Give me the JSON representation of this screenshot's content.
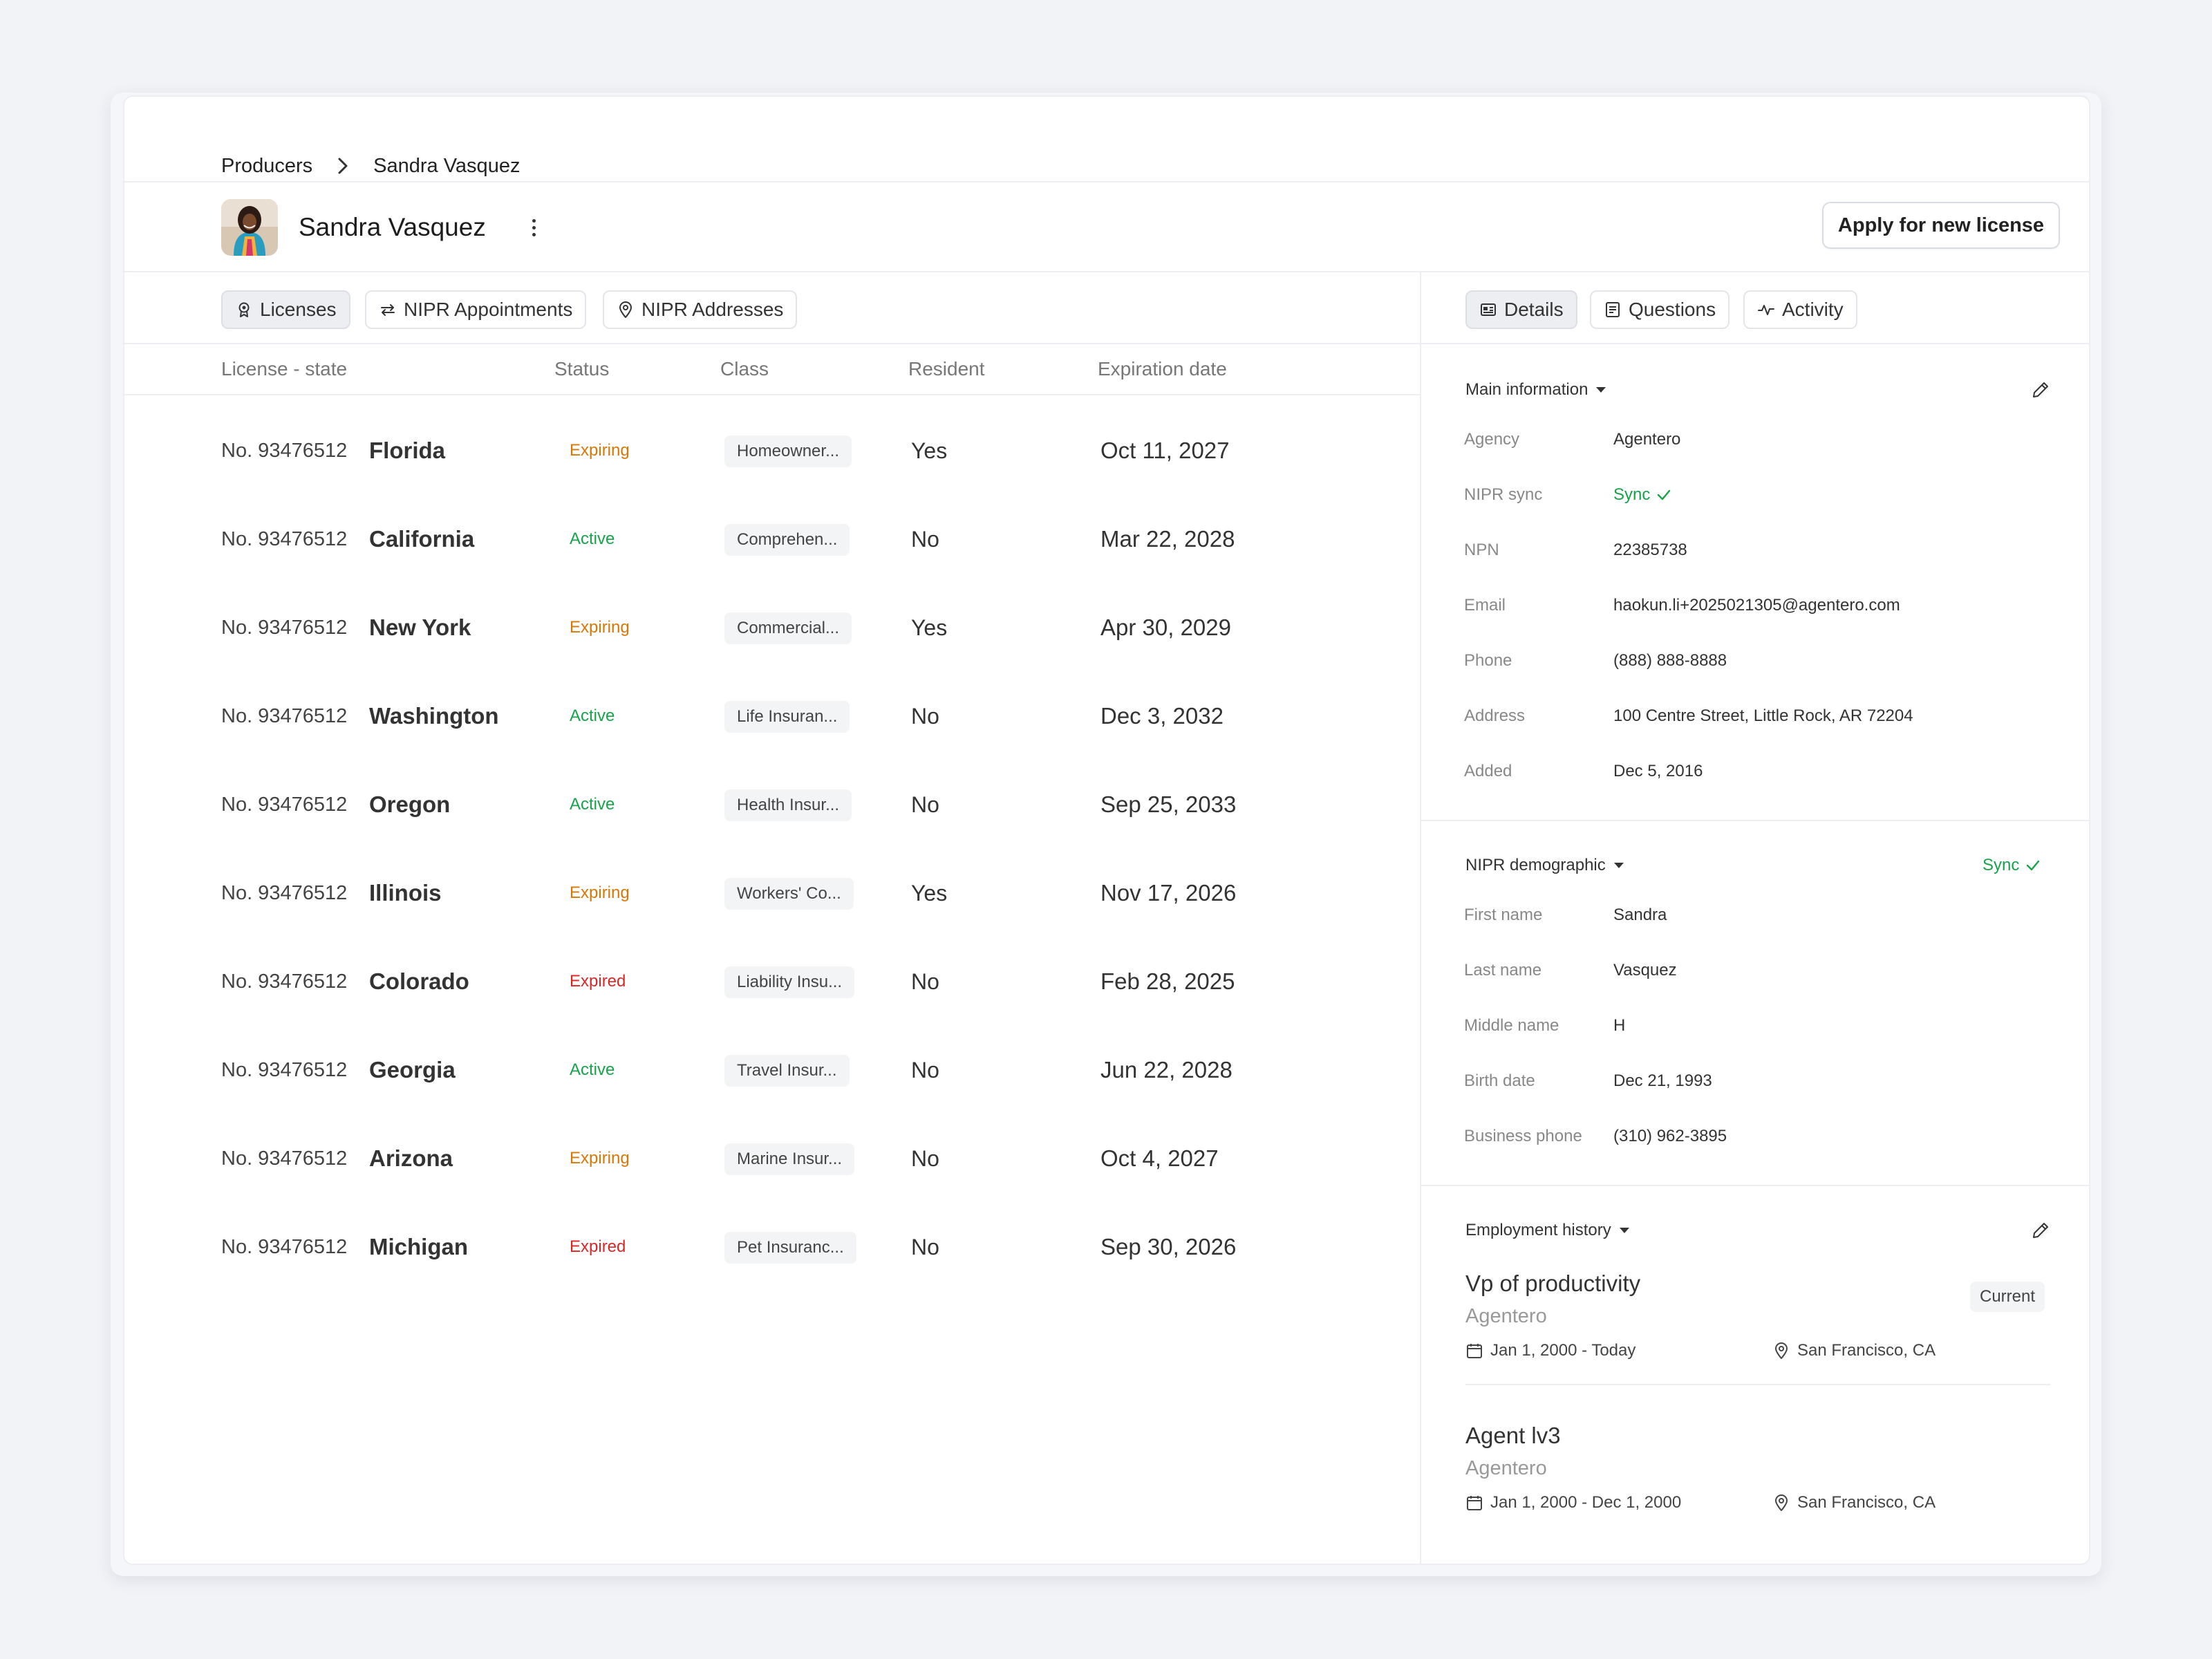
{
  "breadcrumb": {
    "parent": "Producers",
    "current": "Sandra Vasquez"
  },
  "producer": {
    "name": "Sandra Vasquez",
    "action_label": "Apply for new license"
  },
  "left_tabs": [
    {
      "label": "Licenses",
      "icon": "badge-icon",
      "active": true
    },
    {
      "label": "NIPR Appointments",
      "icon": "swap-arrows-icon",
      "active": false
    },
    {
      "label": "NIPR Addresses",
      "icon": "map-pin-icon",
      "active": false
    }
  ],
  "table": {
    "headers": {
      "license_state": "License - state",
      "status": "Status",
      "class": "Class",
      "resident": "Resident",
      "expiration": "Expiration date"
    },
    "rows": [
      {
        "number": "No. 93476512",
        "state": "Florida",
        "status": "Expiring",
        "class": "Homeowner...",
        "resident": "Yes",
        "expiration": "Oct 11, 2027"
      },
      {
        "number": "No. 93476512",
        "state": "California",
        "status": "Active",
        "class": "Comprehen...",
        "resident": "No",
        "expiration": "Mar 22, 2028"
      },
      {
        "number": "No. 93476512",
        "state": "New York",
        "status": "Expiring",
        "class": "Commercial...",
        "resident": "Yes",
        "expiration": "Apr 30, 2029"
      },
      {
        "number": "No. 93476512",
        "state": "Washington",
        "status": "Active",
        "class": "Life Insuran...",
        "resident": "No",
        "expiration": "Dec 3, 2032"
      },
      {
        "number": "No. 93476512",
        "state": "Oregon",
        "status": "Active",
        "class": "Health Insur...",
        "resident": "No",
        "expiration": "Sep 25, 2033"
      },
      {
        "number": "No. 93476512",
        "state": "Illinois",
        "status": "Expiring",
        "class": "Workers' Co...",
        "resident": "Yes",
        "expiration": "Nov 17, 2026"
      },
      {
        "number": "No. 93476512",
        "state": "Colorado",
        "status": "Expired",
        "class": "Liability Insu...",
        "resident": "No",
        "expiration": "Feb 28, 2025"
      },
      {
        "number": "No. 93476512",
        "state": "Georgia",
        "status": "Active",
        "class": "Travel Insur...",
        "resident": "No",
        "expiration": "Jun 22, 2028"
      },
      {
        "number": "No. 93476512",
        "state": "Arizona",
        "status": "Expiring",
        "class": "Marine Insur...",
        "resident": "No",
        "expiration": "Oct 4, 2027"
      },
      {
        "number": "No. 93476512",
        "state": "Michigan",
        "status": "Expired",
        "class": "Pet Insuranc...",
        "resident": "No",
        "expiration": "Sep 30, 2026"
      }
    ]
  },
  "status_colors": {
    "Expiring": "#d97706",
    "Active": "#16a34a",
    "Expired": "#dc2626"
  },
  "right_tabs": [
    {
      "label": "Details",
      "icon": "id-card-icon",
      "active": true
    },
    {
      "label": "Questions",
      "icon": "document-icon",
      "active": false
    },
    {
      "label": "Activity",
      "icon": "activity-icon",
      "active": false
    }
  ],
  "main_information": {
    "title": "Main information",
    "fields": [
      {
        "label": "Agency",
        "value": "Agentero"
      },
      {
        "label": "NIPR sync",
        "value": "Sync"
      },
      {
        "label": "NPN",
        "value": "22385738"
      },
      {
        "label": "Email",
        "value": "haokun.li+2025021305@agentero.com"
      },
      {
        "label": "Phone",
        "value": "(888) 888-8888"
      },
      {
        "label": "Address",
        "value": "100 Centre Street, Little Rock, AR 72204"
      },
      {
        "label": "Added",
        "value": "Dec 5, 2016"
      }
    ]
  },
  "nipr_demographic": {
    "title": "NIPR demographic",
    "sync_label": "Sync",
    "fields": [
      {
        "label": "First name",
        "value": "Sandra"
      },
      {
        "label": "Last name",
        "value": "Vasquez"
      },
      {
        "label": "Middle name",
        "value": "H"
      },
      {
        "label": "Birth date",
        "value": "Dec 21, 1993"
      },
      {
        "label": "Business phone",
        "value": "(310) 962-3895"
      }
    ]
  },
  "employment_history": {
    "title": "Employment history",
    "jobs": [
      {
        "title": "Vp of productivity",
        "company": "Agentero",
        "dates": "Jan 1, 2000 - Today",
        "location": "San Francisco, CA",
        "badge": "Current"
      },
      {
        "title": "Agent lv3",
        "company": "Agentero",
        "dates": "Jan 1, 2000 - Dec 1, 2000",
        "location": "San Francisco, CA"
      }
    ]
  }
}
